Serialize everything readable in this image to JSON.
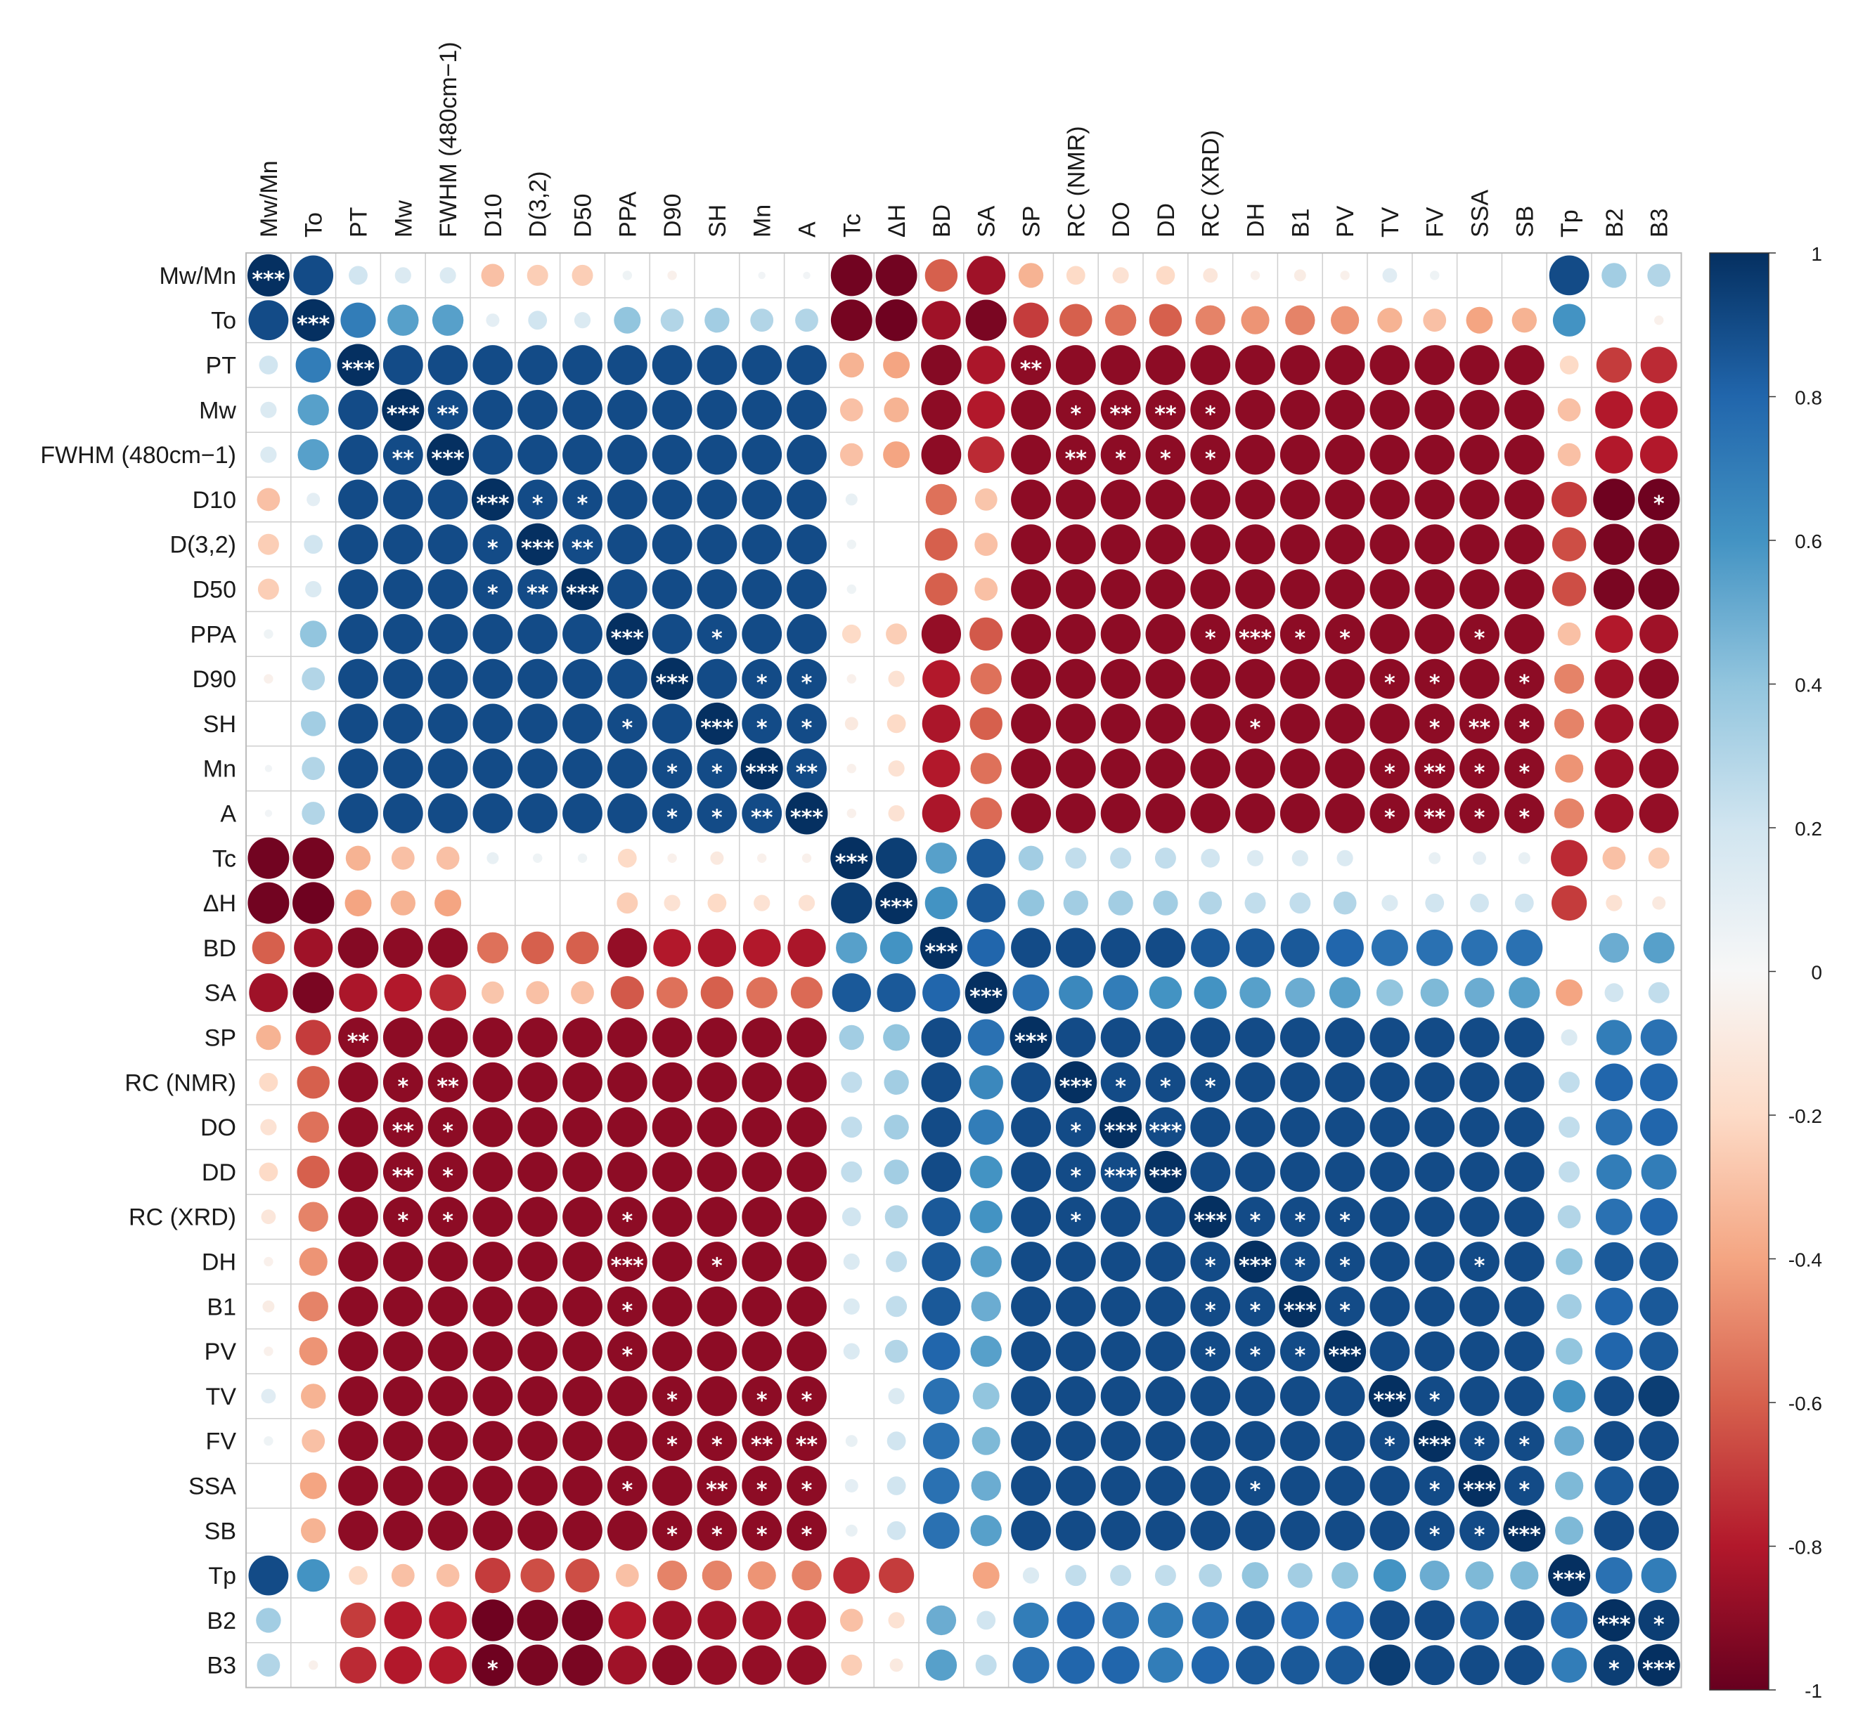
{
  "chart_data": {
    "type": "heatmap",
    "style": "correlation-matrix-circles",
    "variables": [
      "Mw/Mn",
      "To",
      "PT",
      "Mw",
      "FWHM (480cm−1)",
      "D10",
      "D(3,2)",
      "D50",
      "PPA",
      "D90",
      "SH",
      "Mn",
      "A",
      "Tc",
      "ΔH",
      "BD",
      "SA",
      "SP",
      "RC (NMR)",
      "DO",
      "DD",
      "RC (XRD)",
      "DH",
      "B1",
      "PV",
      "TV",
      "FV",
      "SSA",
      "SB",
      "Tp",
      "B2",
      "B3"
    ],
    "groups": {
      "g1": [
        "Mw/Mn",
        "To"
      ],
      "g2": [
        "PT",
        "Mw",
        "FWHM (480cm−1)",
        "D10",
        "D(3,2)",
        "D50",
        "PPA",
        "D90",
        "SH",
        "Mn",
        "A"
      ],
      "g3": [
        "Tc",
        "ΔH"
      ],
      "g4": [
        "BD",
        "SA",
        "SP",
        "RC (NMR)",
        "DO",
        "DD",
        "RC (XRD)",
        "DH",
        "B1",
        "PV",
        "TV",
        "FV",
        "SSA",
        "SB"
      ],
      "g5": [
        "Tp",
        "B2",
        "B3"
      ]
    },
    "correlations": {
      "g1-g1": [
        [
          1.0,
          0.9
        ],
        [
          0.9,
          1.0
        ]
      ],
      "g1-g2": [
        [
          0.2,
          0.15,
          0.15,
          -0.3,
          -0.25,
          -0.25,
          0.05,
          -0.05,
          0.0,
          0.03,
          0.03
        ],
        [
          0.7,
          0.55,
          0.55,
          0.1,
          0.2,
          0.15,
          0.4,
          0.3,
          0.35,
          0.3,
          0.3
        ]
      ],
      "g1-g3": [
        [
          -0.97,
          -0.97
        ],
        [
          -0.96,
          -0.98
        ]
      ],
      "g1-g4": [
        [
          -0.6,
          -0.85,
          -0.35,
          -0.2,
          -0.15,
          -0.2,
          -0.12,
          -0.05,
          -0.08,
          -0.05,
          0.12,
          0.05,
          0.0,
          0.0
        ],
        [
          -0.85,
          -0.95,
          -0.7,
          -0.6,
          -0.55,
          -0.6,
          -0.5,
          -0.45,
          -0.5,
          -0.45,
          -0.35,
          -0.3,
          -0.4,
          -0.35
        ]
      ],
      "g1-g5": [
        [
          0.9,
          0.35,
          0.3
        ],
        [
          0.6,
          0.0,
          -0.05
        ]
      ],
      "g2-g2": 0.9,
      "g2-g3": [
        [
          -0.35,
          -0.4
        ],
        [
          -0.3,
          -0.35
        ],
        [
          -0.3,
          -0.4
        ],
        [
          0.08,
          0.0
        ],
        [
          0.05,
          0.0
        ],
        [
          0.05,
          0.0
        ],
        [
          -0.2,
          -0.25
        ],
        [
          -0.05,
          -0.15
        ],
        [
          -0.1,
          -0.2
        ],
        [
          -0.05,
          -0.15
        ],
        [
          -0.05,
          -0.15
        ]
      ],
      "g2-g4": -0.9,
      "g2-g4-first2": [
        [
          -0.92,
          -0.82
        ],
        [
          -0.9,
          -0.8
        ],
        [
          -0.9,
          -0.75
        ],
        [
          -0.55,
          -0.28
        ],
        [
          -0.6,
          -0.3
        ],
        [
          -0.6,
          -0.3
        ],
        [
          -0.88,
          -0.62
        ],
        [
          -0.8,
          -0.55
        ],
        [
          -0.82,
          -0.6
        ],
        [
          -0.8,
          -0.55
        ],
        [
          -0.82,
          -0.57
        ]
      ],
      "g2-g5": [
        [
          -0.2,
          -0.7,
          -0.75
        ],
        [
          -0.3,
          -0.8,
          -0.8
        ],
        [
          -0.3,
          -0.8,
          -0.8
        ],
        [
          -0.7,
          -0.98,
          -0.98
        ],
        [
          -0.65,
          -0.95,
          -0.95
        ],
        [
          -0.65,
          -0.95,
          -0.95
        ],
        [
          -0.3,
          -0.8,
          -0.85
        ],
        [
          -0.5,
          -0.85,
          -0.9
        ],
        [
          -0.5,
          -0.85,
          -0.88
        ],
        [
          -0.45,
          -0.85,
          -0.88
        ],
        [
          -0.5,
          -0.85,
          -0.88
        ]
      ],
      "g3-g3": [
        [
          1.0,
          0.95
        ],
        [
          0.95,
          1.0
        ]
      ],
      "g3-g4": [
        [
          0.55,
          0.85,
          0.35,
          0.25,
          0.25,
          0.25,
          0.2,
          0.15,
          0.15,
          0.15,
          0.0,
          0.08,
          0.1,
          0.08
        ],
        [
          0.6,
          0.85,
          0.4,
          0.35,
          0.35,
          0.35,
          0.3,
          0.25,
          0.25,
          0.3,
          0.15,
          0.2,
          0.2,
          0.2
        ]
      ],
      "g3-g5": [
        [
          -0.75,
          -0.3,
          -0.25
        ],
        [
          -0.7,
          -0.15,
          -0.1
        ]
      ],
      "g4-g4": 0.9,
      "g4-g4-first2": [
        [
          1.0,
          0.8
        ],
        [
          0.8,
          1.0
        ]
      ],
      "g4-g4-sp-vs-bd-sa": [
        [
          0.9,
          0.75
        ],
        [
          0.9,
          0.65
        ],
        [
          0.9,
          0.7
        ],
        [
          0.9,
          0.6
        ],
        [
          0.85,
          0.6
        ],
        [
          0.85,
          0.55
        ],
        [
          0.85,
          0.5
        ],
        [
          0.8,
          0.55
        ],
        [
          0.75,
          0.4
        ],
        [
          0.75,
          0.45
        ],
        [
          0.75,
          0.5
        ],
        [
          0.75,
          0.55
        ]
      ],
      "g4-g5": [
        [
          0.0,
          0.5,
          0.55
        ],
        [
          -0.4,
          0.2,
          0.25
        ],
        [
          0.15,
          0.7,
          0.75
        ],
        [
          0.25,
          0.8,
          0.8
        ],
        [
          0.25,
          0.75,
          0.8
        ],
        [
          0.25,
          0.7,
          0.7
        ],
        [
          0.3,
          0.75,
          0.8
        ],
        [
          0.4,
          0.85,
          0.85
        ],
        [
          0.35,
          0.8,
          0.85
        ],
        [
          0.4,
          0.8,
          0.85
        ],
        [
          0.6,
          0.9,
          0.95
        ],
        [
          0.5,
          0.9,
          0.9
        ],
        [
          0.45,
          0.85,
          0.9
        ],
        [
          0.45,
          0.9,
          0.9
        ]
      ],
      "g5-g5": [
        [
          1.0,
          0.75,
          0.7
        ],
        [
          0.75,
          1.0,
          0.95
        ],
        [
          0.7,
          0.95,
          1.0
        ]
      ]
    },
    "significance_marks": [
      [
        "FWHM (480cm−1)",
        "Mw",
        "**"
      ],
      [
        "D10",
        "D(3,2)",
        "*"
      ],
      [
        "D50",
        "D10",
        "*"
      ],
      [
        "D50",
        "D(3,2)",
        "**"
      ],
      [
        "SH",
        "PPA",
        "*"
      ],
      [
        "SH",
        "Mn",
        "*"
      ],
      [
        "SH",
        "A",
        "*"
      ],
      [
        "Mn",
        "D90",
        "*"
      ],
      [
        "A",
        "D90",
        "*"
      ],
      [
        "A",
        "Mn",
        "**"
      ],
      [
        "SP",
        "PT",
        "**"
      ],
      [
        "RC (NMR)",
        "Mw",
        "*"
      ],
      [
        "RC (NMR)",
        "FWHM (480cm−1)",
        "**"
      ],
      [
        "DO",
        "Mw",
        "**"
      ],
      [
        "DD",
        "Mw",
        "**"
      ],
      [
        "RC (XRD)",
        "Mw",
        "*"
      ],
      [
        "PV",
        "PPA",
        "*"
      ],
      [
        "TV",
        "D90",
        "*"
      ],
      [
        "TV",
        "Mn",
        "*"
      ],
      [
        "TV",
        "A",
        "*"
      ],
      [
        "FV",
        "D90",
        "*"
      ],
      [
        "FV",
        "SH",
        "*"
      ],
      [
        "FV",
        "Mn",
        "**"
      ],
      [
        "FV",
        "A",
        "**"
      ],
      [
        "SB",
        "D90",
        "*"
      ],
      [
        "SB",
        "SH",
        "*"
      ],
      [
        "SB",
        "Mn",
        "*"
      ],
      [
        "SB",
        "A",
        "*"
      ],
      [
        "B3",
        "D10",
        "*"
      ],
      [
        "RC (NMR)",
        "DO",
        "*"
      ],
      [
        "RC (NMR)",
        "DD",
        "*"
      ],
      [
        "RC (NMR)",
        "RC (XRD)",
        "*"
      ],
      [
        "DO",
        "DD",
        "***"
      ],
      [
        "DH",
        "RC (XRD)",
        "*"
      ],
      [
        "DH",
        "B1",
        "*"
      ],
      [
        "DH",
        "SSA",
        "*"
      ],
      [
        "PV",
        "RC (XRD)",
        "*"
      ],
      [
        "PV",
        "DH",
        "*"
      ],
      [
        "PV",
        "B1",
        "*"
      ],
      [
        "FV",
        "TV",
        "*"
      ],
      [
        "FV",
        "SSA",
        "*"
      ],
      [
        "SB",
        "FV",
        "*"
      ],
      [
        "SB",
        "SSA",
        "*"
      ],
      [
        "B3",
        "B2",
        "*"
      ],
      [
        "FWHM (480cm−1)",
        "DO",
        "*"
      ],
      [
        "FWHM (480cm−1)",
        "DD",
        "*"
      ],
      [
        "FWHM (480cm−1)",
        "RC (XRD)",
        "*"
      ],
      [
        "PPA",
        "RC (XRD)",
        "*"
      ],
      [
        "PPA",
        "DH",
        "***"
      ],
      [
        "PPA",
        "B1",
        "*"
      ],
      [
        "PPA",
        "SSA",
        "*"
      ],
      [
        "SH",
        "DH",
        "*"
      ],
      [
        "SH",
        "SSA",
        "**"
      ],
      [
        "Mn",
        "SSA",
        "*"
      ],
      [
        "A",
        "SSA",
        "*"
      ],
      [
        "RC (XRD)",
        "B1",
        "*"
      ]
    ],
    "diagonal_mark": "***",
    "colorbar": {
      "ticks": [
        "1",
        "0.8",
        "0.6",
        "0.4",
        "0.2",
        "0",
        "-0.2",
        "-0.4",
        "-0.6",
        "-0.8",
        "-1"
      ],
      "range": [
        -1,
        1
      ]
    },
    "colors": {
      "neg_strong": "#67001f",
      "neg_mid": "#d6604d",
      "neutral": "#f7f7f7",
      "pos_mid": "#4393c3",
      "pos_strong": "#053061",
      "grid": "#cccccc"
    }
  }
}
